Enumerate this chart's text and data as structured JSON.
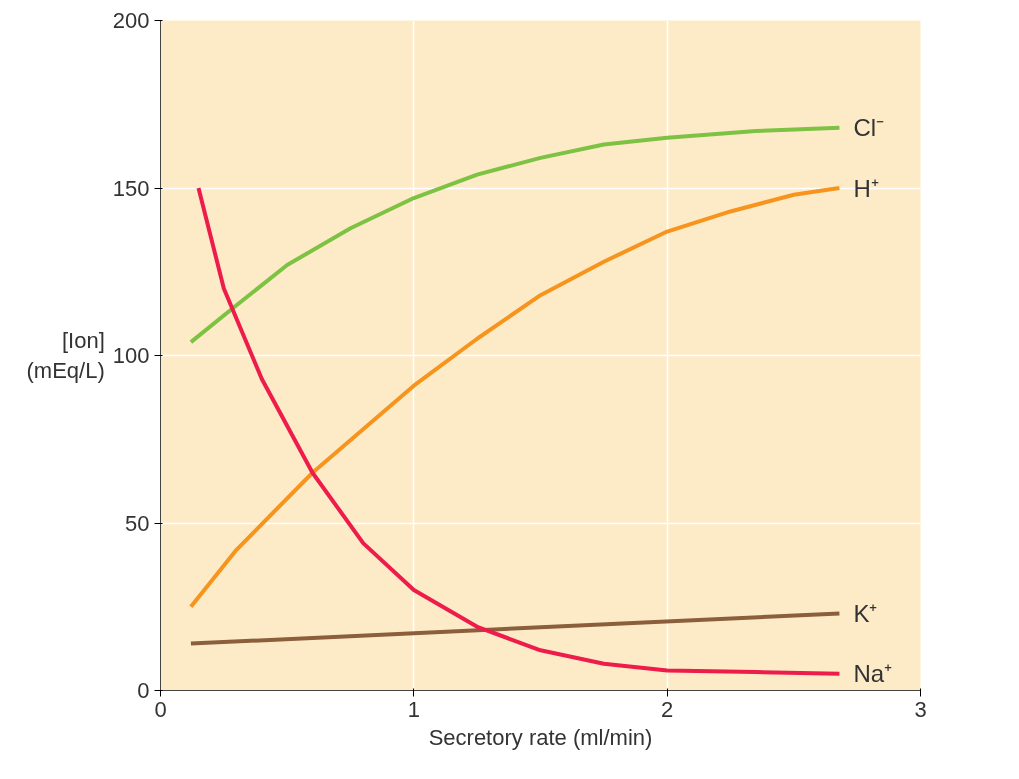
{
  "chart_data": {
    "type": "line",
    "xlabel": "Secretory rate (ml/min)",
    "ylabel": "[Ion]\n(mEq/L)",
    "xlim": [
      0,
      3
    ],
    "ylim": [
      0,
      200
    ],
    "xticks": [
      0,
      1,
      2,
      3
    ],
    "yticks": [
      0,
      50,
      100,
      150,
      200
    ],
    "grid": true,
    "marker": "none",
    "line_style": "solid",
    "series": [
      {
        "name": "Cl⁻",
        "color": "#7dc242",
        "x": [
          0.12,
          0.3,
          0.5,
          0.75,
          1,
          1.25,
          1.5,
          1.75,
          2,
          2.35,
          2.68
        ],
        "values": [
          104,
          115,
          127,
          138,
          147,
          154,
          159,
          163,
          165,
          167,
          168
        ]
      },
      {
        "name": "H⁺",
        "color": "#f7941d",
        "x": [
          0.12,
          0.3,
          0.6,
          1,
          1.25,
          1.5,
          1.75,
          2,
          2.25,
          2.5,
          2.68
        ],
        "values": [
          25,
          42,
          65,
          91,
          105,
          118,
          128,
          137,
          143,
          148,
          150
        ]
      },
      {
        "name": "K⁺",
        "color": "#8b5e3c",
        "x": [
          0.12,
          2.68
        ],
        "values": [
          14,
          23
        ]
      },
      {
        "name": "Na⁺",
        "color": "#ed1c4a",
        "x": [
          0.15,
          0.25,
          0.4,
          0.6,
          0.8,
          1,
          1.25,
          1.5,
          1.75,
          2,
          2.35,
          2.68
        ],
        "values": [
          150,
          120,
          93,
          65,
          44,
          30,
          19,
          12,
          8,
          6,
          5.5,
          5
        ]
      }
    ]
  }
}
